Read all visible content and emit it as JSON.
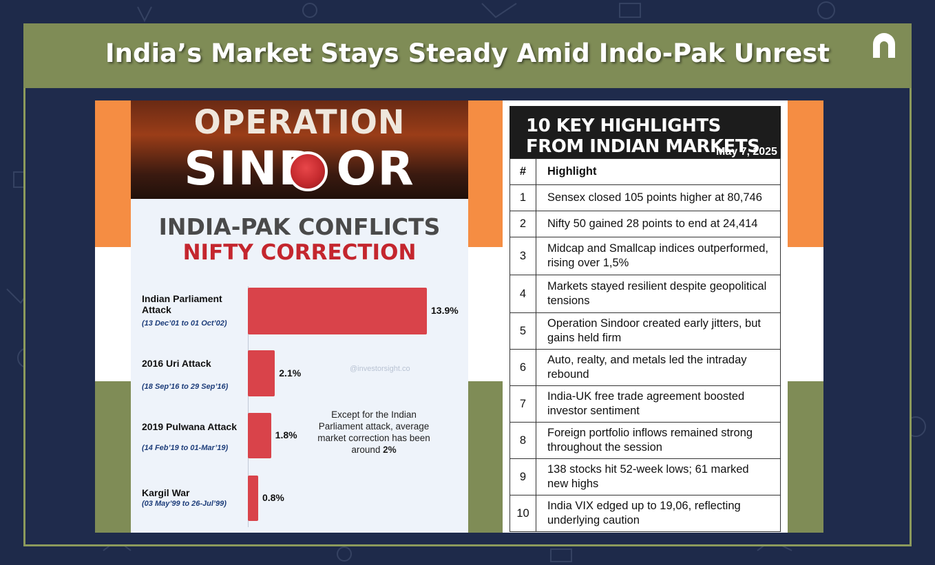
{
  "header": {
    "title": "India’s Market Stays Steady Amid Indo-Pak Unrest"
  },
  "left_infographic": {
    "banner_line1": "OPERATION",
    "banner_line2": "SIND  OR",
    "title": "INDIA-PAK CONFLICTS",
    "subtitle": "NIFTY CORRECTION",
    "watermark": "@investorsight.co",
    "note_text": "Except for the Indian Parliament attack, average market correction has been around",
    "note_bold": "2%"
  },
  "chart_data": {
    "type": "bar",
    "orientation": "horizontal",
    "title": "NIFTY CORRECTION",
    "categories": [
      "Indian Parliament Attack",
      "2016 Uri Attack",
      "2019 Pulwana Attack",
      "Kargil War"
    ],
    "periods": [
      "(13 Dec’01 to 01 Oct’02)",
      "(18 Sep’16 to 29 Sep’16)",
      "(14 Feb’19 to 01-Mar’19)",
      "(03 May’99 to 26-Jul’99)"
    ],
    "values": [
      13.9,
      2.1,
      1.8,
      0.8
    ],
    "value_labels": [
      "13.9%",
      "2.1%",
      "1.8%",
      "0.8%"
    ],
    "color": "#d9434a"
  },
  "highlights": {
    "title": "10 KEY HIGHLIGHTS FROM INDIAN MARKETS",
    "date": "May 7, 2025",
    "col_num": "#",
    "col_text": "Highlight",
    "rows": [
      {
        "n": "1",
        "text": "Sensex closed 105 points higher at 80,746"
      },
      {
        "n": "2",
        "text": "Nifty 50 gained 28 points to end at 24,414"
      },
      {
        "n": "3",
        "text": "Midcap and Smallcap indices outperformed, rising over 1,5%"
      },
      {
        "n": "4",
        "text": "Markets stayed resilient despite geopolitical tensions"
      },
      {
        "n": "5",
        "text": "Operation Sindoor created early jitters, but gains held firm"
      },
      {
        "n": "6",
        "text": "Auto, realty, and metals led the intraday rebound"
      },
      {
        "n": "7",
        "text": "India-UK free trade agreement boosted investor sentiment"
      },
      {
        "n": "8",
        "text": "Foreign portfolio inflows remained strong throughout the session"
      },
      {
        "n": "9",
        "text": "138 stocks hit 52-week lows; 61 marked new highs"
      },
      {
        "n": "10",
        "text": "India VIX edged up to 19,06, reflecting underlying caution"
      }
    ]
  },
  "colors": {
    "saffron": "#f58d43",
    "green": "#7f8c56",
    "navy": "#1e2a4a",
    "bar_red": "#d9434a"
  }
}
